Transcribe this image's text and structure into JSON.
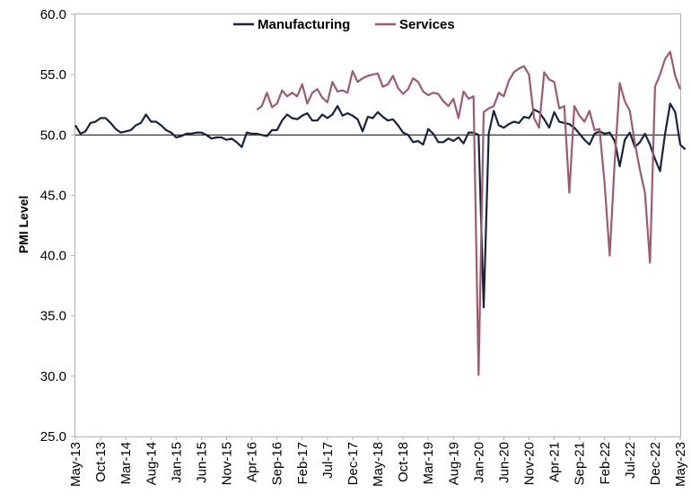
{
  "chart_data": {
    "type": "line",
    "title": "",
    "xlabel": "",
    "ylabel": "PMI Level",
    "ylim": [
      25.0,
      60.0
    ],
    "yticks": [
      "25.0",
      "30.0",
      "35.0",
      "40.0",
      "45.0",
      "50.0",
      "55.0",
      "60.0"
    ],
    "reference_line": 50.0,
    "grid": false,
    "legend_position": "top-center",
    "x_start": "2013-05",
    "x_end": "2023-05",
    "xtick_labels": [
      "May-13",
      "Oct-13",
      "Mar-14",
      "Aug-14",
      "Jan-15",
      "Jun-15",
      "Nov-15",
      "Apr-16",
      "Sep-16",
      "Feb-17",
      "Jul-17",
      "Dec-17",
      "May-18",
      "Oct-18",
      "Mar-19",
      "Aug-19",
      "Jan-20",
      "Jun-20",
      "Nov-20",
      "Apr-21",
      "Sep-21",
      "Feb-22",
      "Jul-22",
      "Dec-22",
      "May-23"
    ],
    "series": [
      {
        "name": "Manufacturing",
        "color": "#17243f",
        "start": "2013-05",
        "values": [
          50.8,
          50.1,
          50.3,
          51.0,
          51.1,
          51.4,
          51.4,
          51.0,
          50.5,
          50.2,
          50.3,
          50.4,
          50.8,
          51.0,
          51.7,
          51.1,
          51.1,
          50.8,
          50.4,
          50.2,
          49.8,
          49.9,
          50.1,
          50.1,
          50.2,
          50.2,
          50.0,
          49.7,
          49.8,
          49.8,
          49.6,
          49.7,
          49.4,
          49.0,
          50.2,
          50.1,
          50.1,
          50.0,
          49.9,
          50.4,
          50.4,
          51.2,
          51.7,
          51.4,
          51.3,
          51.6,
          51.8,
          51.2,
          51.2,
          51.7,
          51.4,
          51.7,
          52.4,
          51.6,
          51.8,
          51.6,
          51.3,
          50.3,
          51.5,
          51.4,
          51.9,
          51.5,
          51.2,
          51.3,
          50.8,
          50.2,
          50.0,
          49.4,
          49.5,
          49.2,
          50.5,
          50.1,
          49.4,
          49.4,
          49.7,
          49.5,
          49.8,
          49.3,
          50.2,
          50.2,
          50.0,
          35.7,
          50.1,
          52.0,
          50.8,
          50.6,
          50.9,
          51.1,
          51.0,
          51.5,
          51.4,
          52.1,
          51.9,
          51.3,
          50.6,
          51.9,
          51.1,
          51.0,
          50.9,
          50.6,
          50.1,
          49.6,
          49.2,
          50.1,
          50.3,
          50.1,
          50.2,
          49.5,
          47.4,
          49.6,
          50.2,
          49.0,
          49.4,
          50.1,
          49.2,
          48.0,
          47.0,
          50.1,
          52.6,
          51.9,
          49.2,
          48.8
        ]
      },
      {
        "name": "Services",
        "color": "#a05a6d",
        "start": "2016-05",
        "values": [
          52.1,
          52.4,
          53.5,
          52.3,
          52.6,
          53.7,
          53.2,
          53.5,
          53.2,
          54.2,
          52.6,
          53.5,
          53.8,
          53.1,
          52.7,
          54.4,
          53.6,
          53.7,
          53.5,
          55.3,
          54.4,
          54.7,
          54.9,
          55.0,
          55.1,
          54.0,
          54.2,
          54.9,
          53.9,
          53.4,
          53.8,
          54.7,
          54.4,
          53.6,
          53.3,
          53.5,
          53.4,
          52.8,
          52.4,
          53.0,
          51.4,
          53.6,
          53.0,
          53.2,
          30.1,
          51.9,
          52.2,
          52.4,
          53.5,
          53.2,
          54.5,
          55.2,
          55.5,
          55.7,
          55.0,
          51.4,
          50.6,
          55.2,
          54.6,
          54.4,
          52.2,
          52.4,
          45.2,
          52.4,
          51.6,
          51.1,
          52.0,
          50.4,
          50.5,
          45.9,
          40.0,
          47.8,
          54.3,
          52.8,
          52.0,
          49.3,
          47.1,
          45.2,
          39.4,
          54.0,
          55.0,
          56.3,
          56.9,
          54.9,
          53.8
        ]
      }
    ]
  }
}
